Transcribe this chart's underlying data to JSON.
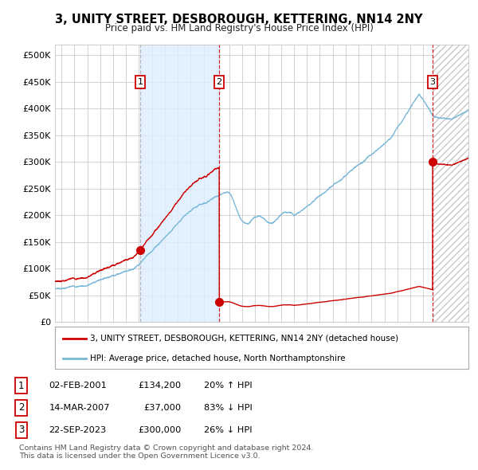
{
  "title": "3, UNITY STREET, DESBOROUGH, KETTERING, NN14 2NY",
  "subtitle": "Price paid vs. HM Land Registry's House Price Index (HPI)",
  "xlim": [
    1994.5,
    2026.5
  ],
  "ylim": [
    0,
    520000
  ],
  "yticks": [
    0,
    50000,
    100000,
    150000,
    200000,
    250000,
    300000,
    350000,
    400000,
    450000,
    500000
  ],
  "ytick_labels": [
    "£0",
    "£50K",
    "£100K",
    "£150K",
    "£200K",
    "£250K",
    "£300K",
    "£350K",
    "£400K",
    "£450K",
    "£500K"
  ],
  "xticks": [
    1995,
    1996,
    1997,
    1998,
    1999,
    2000,
    2001,
    2002,
    2003,
    2004,
    2005,
    2006,
    2007,
    2008,
    2009,
    2010,
    2011,
    2012,
    2013,
    2014,
    2015,
    2016,
    2017,
    2018,
    2019,
    2020,
    2021,
    2022,
    2023,
    2024,
    2025,
    2026
  ],
  "sale_dates": [
    2001.09,
    2007.21,
    2023.73
  ],
  "sale_prices": [
    134200,
    37000,
    300000
  ],
  "sale_labels": [
    "1",
    "2",
    "3"
  ],
  "hpi_color": "#7ab8d9",
  "sale_color": "#cc0000",
  "shading_color": "#ddeeff",
  "grid_color": "#cccccc",
  "background_color": "#ffffff",
  "legend_label_sale": "3, UNITY STREET, DESBOROUGH, KETTERING, NN14 2NY (detached house)",
  "legend_label_hpi": "HPI: Average price, detached house, North Northamptonshire",
  "table_data": [
    {
      "num": "1",
      "date": "02-FEB-2001",
      "price": "£134,200",
      "change": "20% ↑ HPI"
    },
    {
      "num": "2",
      "date": "14-MAR-2007",
      "price": "£37,000",
      "change": "83% ↓ HPI"
    },
    {
      "num": "3",
      "date": "22-SEP-2023",
      "price": "£300,000",
      "change": "26% ↓ HPI"
    }
  ],
  "footer": "Contains HM Land Registry data © Crown copyright and database right 2024.\nThis data is licensed under the Open Government Licence v3.0."
}
